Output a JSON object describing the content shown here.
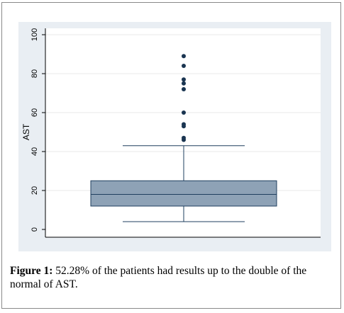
{
  "figure": {
    "label": "Figure 1:",
    "caption": "52.28% of the patients had results up to the double of the normal of AST."
  },
  "chart_data": {
    "type": "box",
    "ylabel": "AST",
    "xlabel": "",
    "title": "",
    "ylim": [
      0,
      100
    ],
    "yticks": [
      0,
      20,
      40,
      60,
      80,
      100
    ],
    "grid": true,
    "box": {
      "whisker_low": 4,
      "q1": 12,
      "median": 18,
      "q3": 25,
      "whisker_high": 43
    },
    "outliers": [
      46,
      47,
      53,
      54,
      60,
      72,
      75,
      77,
      84,
      89
    ],
    "colors": {
      "box_fill": "#8ea2b6",
      "box_stroke": "#1f3f5f",
      "outlier": "#1a3551",
      "plot_background": "#e9eef3",
      "grid": "#ffffff"
    }
  }
}
